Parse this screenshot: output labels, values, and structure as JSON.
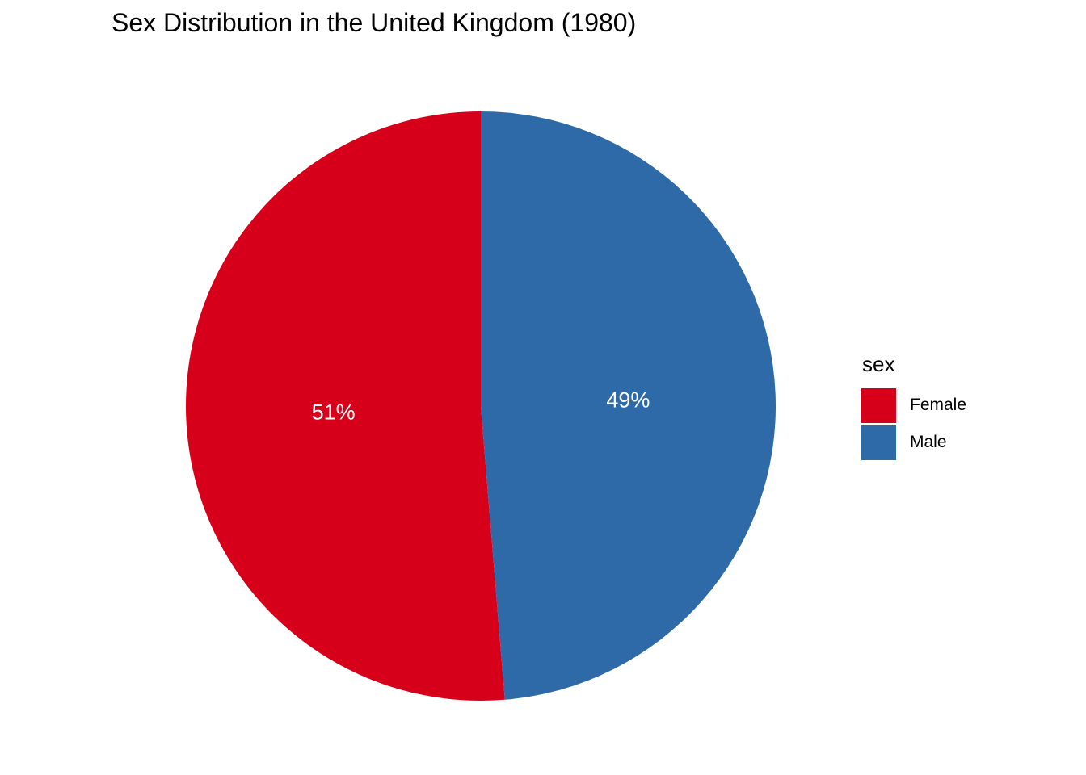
{
  "chart_data": {
    "type": "pie",
    "title": "Sex Distribution in the United Kingdom (1980)",
    "legend_title": "sex",
    "legend_position": "right",
    "categories": [
      "Female",
      "Male"
    ],
    "values": [
      51.3,
      48.7
    ],
    "labels": [
      "51%",
      "49%"
    ],
    "colors": [
      "#d7001a",
      "#2e69a8"
    ]
  }
}
